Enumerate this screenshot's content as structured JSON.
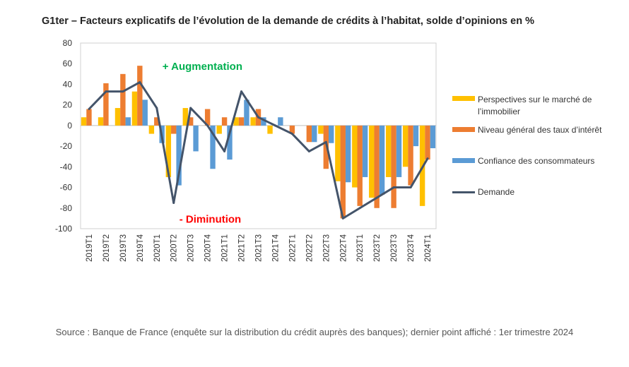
{
  "title": "G1ter – Facteurs explicatifs de l’évolution de la demande de crédits à l’habitat, solde d’opinions en %",
  "source": "Source : Banque de France (enquête sur la distribution du crédit auprès des banques); dernier point affiché : 1er trimestre 2024",
  "chart_data": {
    "type": "bar",
    "title": "G1ter – Facteurs explicatifs de l’évolution de la demande de crédits à l’habitat, solde d’opinions en %",
    "ylim": [
      -100,
      80
    ],
    "yticks": [
      80,
      60,
      40,
      20,
      0,
      -20,
      -40,
      -60,
      -80,
      -100
    ],
    "grid": false,
    "legend_position": "right",
    "categories": [
      "2019T1",
      "2019T2",
      "2019T3",
      "2019T4",
      "2020T1",
      "2020T2",
      "2020T3",
      "2020T4",
      "2021T1",
      "2021T2",
      "2021T3",
      "2021T4",
      "2022T1",
      "2022T2",
      "2022T3",
      "2022T4",
      "2023T1",
      "2023T2",
      "2023T3",
      "2023T4",
      "2024T1"
    ],
    "series": [
      {
        "name": "Perspectives sur le marché de l’immobilier",
        "type": "bar",
        "color": "#FFC000",
        "values": [
          8,
          8,
          17,
          33,
          -8,
          -50,
          17,
          0,
          -8,
          8,
          8,
          -8,
          0,
          0,
          -8,
          -54,
          -60,
          -70,
          -50,
          -40,
          -78
        ]
      },
      {
        "name": "Niveau général des taux d’intérêt",
        "type": "bar",
        "color": "#ED7D31",
        "values": [
          16,
          41,
          50,
          58,
          8,
          -8,
          8,
          16,
          8,
          8,
          16,
          0,
          -8,
          -16,
          -42,
          -90,
          -78,
          -80,
          -80,
          -58,
          -33
        ]
      },
      {
        "name": "Confiance des consommateurs",
        "type": "bar",
        "color": "#5B9BD5",
        "values": [
          0,
          0,
          8,
          25,
          -17,
          -58,
          -25,
          -42,
          -33,
          25,
          8,
          8,
          0,
          -16,
          -17,
          -55,
          -50,
          -67,
          -50,
          -20,
          -22
        ]
      },
      {
        "name": "Demande",
        "type": "line",
        "color": "#44546A",
        "values": [
          16,
          33,
          33,
          42,
          17,
          -75,
          17,
          0,
          -25,
          33,
          8,
          0,
          -8,
          -25,
          -16,
          -90,
          -80,
          -70,
          -60,
          -60,
          -32
        ]
      }
    ],
    "annotations": [
      {
        "text": "+ Augmentation",
        "color": "#00B050",
        "x": "2020T1",
        "y": 58
      },
      {
        "text": "- Diminution",
        "color": "#FF0000",
        "x": "2020T2",
        "y": -90
      }
    ]
  },
  "legend": [
    {
      "label": "Perspectives sur le marché de l’immobilier",
      "color": "#FFC000",
      "kind": "bar"
    },
    {
      "label": "Niveau général des taux d’intérêt",
      "color": "#ED7D31",
      "kind": "bar"
    },
    {
      "label": "Confiance des consommateurs",
      "color": "#5B9BD5",
      "kind": "bar"
    },
    {
      "label": "Demande",
      "color": "#44546A",
      "kind": "line"
    }
  ]
}
